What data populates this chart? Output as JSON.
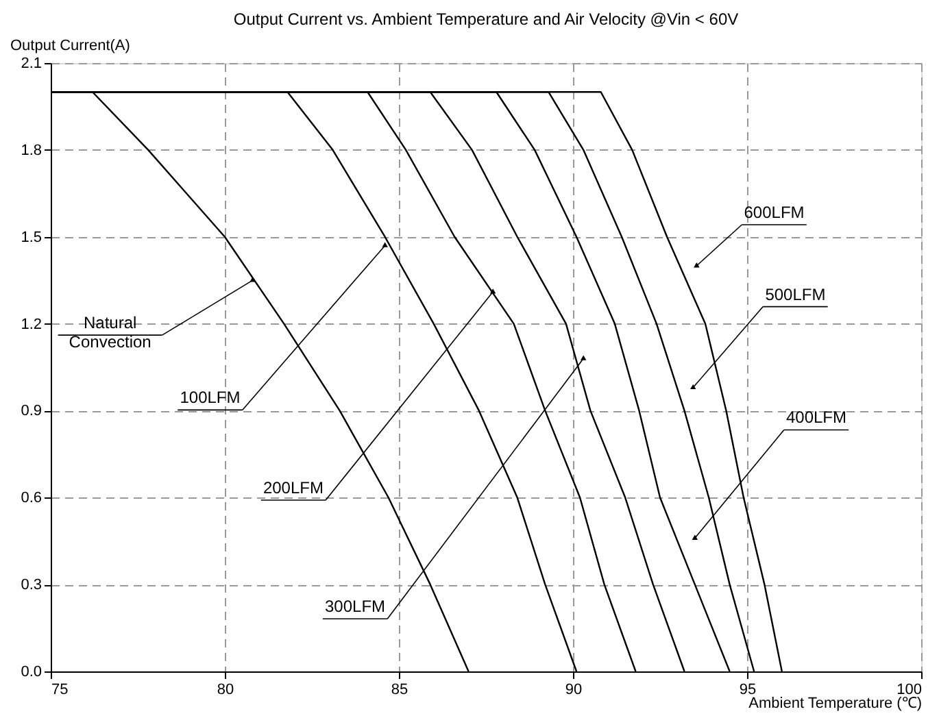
{
  "chart_data": {
    "type": "line",
    "title": "Output Current vs. Ambient Temperature and Air Velocity @Vin < 60V",
    "xlabel": "Ambient Temperature (℃)",
    "ylabel": "Output Current(A)",
    "xlim": [
      75,
      100
    ],
    "xticks": [
      75,
      80,
      85,
      90,
      95,
      100
    ],
    "ylim": [
      0,
      2.1
    ],
    "yticks": [
      {
        "value": 0,
        "label": "0.0"
      },
      0.3,
      0.6,
      0.9,
      1.2,
      1.5,
      1.8,
      2.1
    ],
    "grid": true,
    "legend": false,
    "marker": "none",
    "line_style": "solid",
    "series": [
      {
        "color": "#000000",
        "x": [
          75,
          76.2,
          77.8,
          80.0,
          81.7,
          83.3,
          84.7,
          85.9,
          87.0
        ],
        "values": [
          2.0,
          2.0,
          1.8,
          1.5,
          1.2,
          0.9,
          0.6,
          0.3,
          0
        ]
      },
      {
        "color": "#000000",
        "x": [
          75,
          81.8,
          83.1,
          84.6,
          86.0,
          87.3,
          88.4,
          89.2,
          90.1
        ],
        "values": [
          2.0,
          2.0,
          1.8,
          1.5,
          1.2,
          0.9,
          0.6,
          0.3,
          0
        ]
      },
      {
        "color": "#000000",
        "x": [
          75,
          84.1,
          85.2,
          86.6,
          88.3,
          89.2,
          90.2,
          90.9,
          91.8
        ],
        "values": [
          2.0,
          2.0,
          1.8,
          1.5,
          1.2,
          0.9,
          0.6,
          0.3,
          0
        ]
      },
      {
        "color": "#000000",
        "x": [
          75,
          85.9,
          87.1,
          88.4,
          89.8,
          90.5,
          91.5,
          92.3,
          93.2
        ],
        "values": [
          2.0,
          2.0,
          1.8,
          1.5,
          1.2,
          0.9,
          0.6,
          0.3,
          0
        ]
      },
      {
        "color": "#000000",
        "x": [
          75,
          87.8,
          88.9,
          90.1,
          91.2,
          91.9,
          92.5,
          93.5,
          94.5
        ],
        "values": [
          2.0,
          2.0,
          1.8,
          1.5,
          1.2,
          0.9,
          0.6,
          0.3,
          0
        ]
      },
      {
        "color": "#000000",
        "x": [
          75,
          89.3,
          90.3,
          91.4,
          92.4,
          93.2,
          93.9,
          94.5,
          95.2
        ],
        "values": [
          2.0,
          2.0,
          1.8,
          1.5,
          1.2,
          0.9,
          0.6,
          0.3,
          0
        ]
      },
      {
        "color": "#000000",
        "x": [
          75,
          90.8,
          91.7,
          92.7,
          93.8,
          94.4,
          94.9,
          95.5,
          96.0
        ],
        "values": [
          2.0,
          2.0,
          1.8,
          1.5,
          1.2,
          0.9,
          0.6,
          0.3,
          0
        ]
      }
    ],
    "annotations": [
      {
        "text": "Natural Convection",
        "x": 80.8,
        "y": 1.35
      },
      {
        "text": "100LFM",
        "x": 84.6,
        "y": 1.47
      },
      {
        "text": "200LFM",
        "x": 87.7,
        "y": 1.31
      },
      {
        "text": "300LFM",
        "x": 90.3,
        "y": 1.08
      },
      {
        "text": "400LFM",
        "x": 93.5,
        "y": 0.46
      },
      {
        "text": "500LFM",
        "x": 93.45,
        "y": 0.98
      },
      {
        "text": "600LFM",
        "x": 93.55,
        "y": 1.4
      }
    ]
  }
}
